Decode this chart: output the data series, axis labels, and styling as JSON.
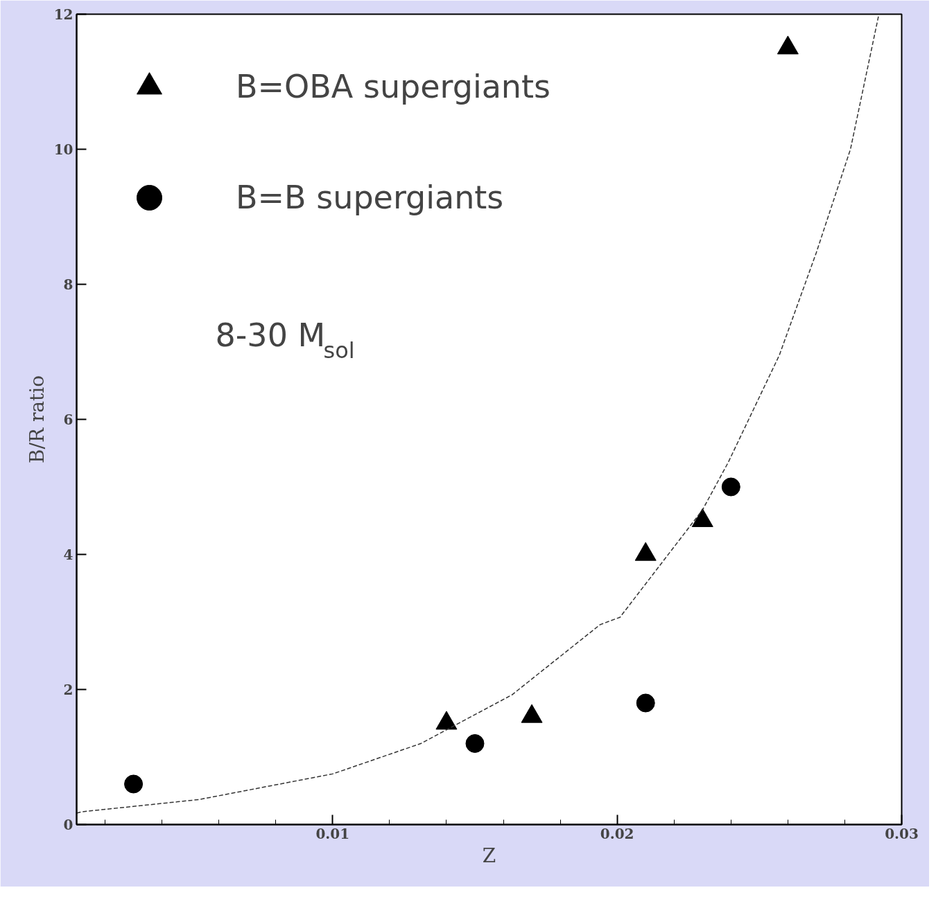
{
  "chart_data": {
    "type": "scatter",
    "xlabel": "Z",
    "ylabel": "B/R ratio",
    "xlim": [
      0.001,
      0.03
    ],
    "ylim": [
      0,
      12
    ],
    "xticks": [
      {
        "value": 0.002,
        "label": null
      },
      {
        "value": 0.004,
        "label": null
      },
      {
        "value": 0.006,
        "label": null
      },
      {
        "value": 0.008,
        "label": null
      },
      {
        "value": 0.01,
        "label": "0.01"
      },
      {
        "value": 0.012,
        "label": null
      },
      {
        "value": 0.014,
        "label": null
      },
      {
        "value": 0.016,
        "label": null
      },
      {
        "value": 0.018,
        "label": null
      },
      {
        "value": 0.02,
        "label": "0.02"
      },
      {
        "value": 0.022,
        "label": null
      },
      {
        "value": 0.024,
        "label": null
      },
      {
        "value": 0.026,
        "label": null
      },
      {
        "value": 0.028,
        "label": null
      },
      {
        "value": 0.03,
        "label": "0.03"
      }
    ],
    "yticks": [
      0,
      2,
      4,
      6,
      8,
      10,
      12
    ],
    "legend": "top left",
    "grid": false,
    "annotations": [
      "8-30 M$_{sol}$"
    ],
    "series": [
      {
        "name": "B=OBA supergiants",
        "color": "#000000",
        "marker": "triangle",
        "x": [
          0.014,
          0.017,
          0.021,
          0.023,
          0.026
        ],
        "values": [
          1.5,
          1.6,
          4.0,
          4.5,
          11.5
        ]
      },
      {
        "name": "B=B supergiants",
        "color": "#000000",
        "marker": "circle",
        "x": [
          0.003,
          0.015,
          0.021,
          0.024
        ],
        "values": [
          0.6,
          1.2,
          1.8,
          5.0
        ]
      },
      {
        "type": "line",
        "color": "#333333",
        "line_style": "dashed",
        "marker": "none",
        "x": [
          0.001,
          0.0012,
          0.0053,
          0.01,
          0.0131,
          0.0163,
          0.0194,
          0.0201,
          0.023,
          0.0239,
          0.0257,
          0.027,
          0.0282,
          0.0292
        ],
        "values": [
          0.17,
          0.19,
          0.37,
          0.75,
          1.2,
          1.92,
          2.96,
          3.07,
          4.66,
          5.36,
          6.95,
          8.47,
          10.0,
          12.0
        ]
      }
    ]
  }
}
